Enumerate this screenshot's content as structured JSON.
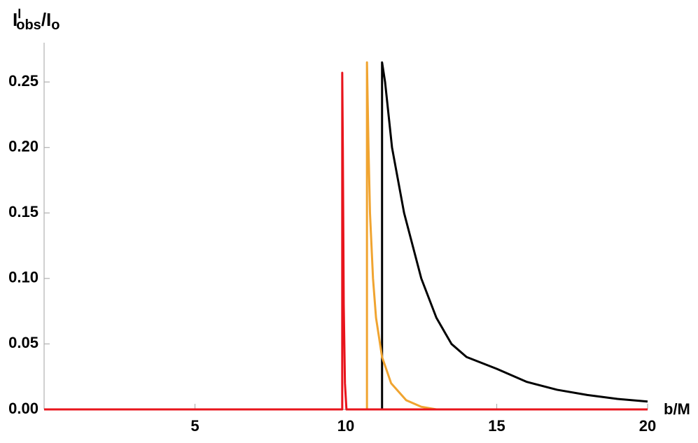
{
  "chart_data": {
    "type": "line",
    "ylabel": {
      "base": "I",
      "sup": "l",
      "sub": "obs",
      "rest": "/I",
      "rest_sub": "o"
    },
    "xlabel": "b/M",
    "xlim": [
      0,
      20
    ],
    "ylim": [
      0,
      0.28
    ],
    "xticks": [
      5,
      10,
      15,
      20
    ],
    "yticks": [
      {
        "value": 0,
        "label": "0.00"
      },
      {
        "value": 0.05,
        "label": "0.05"
      },
      {
        "value": 0.1,
        "label": "0.10"
      },
      {
        "value": 0.15,
        "label": "0.15"
      },
      {
        "value": 0.2,
        "label": "0.20"
      },
      {
        "value": 0.25,
        "label": "0.25"
      }
    ],
    "series": [
      {
        "color": "#000000",
        "x": [
          11.2,
          11.2,
          11.3,
          11.53,
          11.93,
          12.5,
          13,
          13.5,
          14,
          15,
          16,
          17,
          18,
          19,
          20
        ],
        "values": [
          0,
          0.265,
          0.25,
          0.2,
          0.15,
          0.1,
          0.07,
          0.05,
          0.04,
          0.031,
          0.021,
          0.015,
          0.011,
          0.008,
          0.006
        ]
      },
      {
        "color": "#f0a430",
        "x": [
          10.7,
          10.7,
          10.75,
          10.8,
          10.9,
          11,
          11.2,
          11.5,
          12,
          12.5,
          13,
          20
        ],
        "values": [
          0,
          0.265,
          0.2,
          0.15,
          0.1,
          0.07,
          0.04,
          0.02,
          0.007,
          0.002,
          0,
          0
        ]
      },
      {
        "color": "#e8141c",
        "x": [
          0,
          9.88,
          9.88,
          9.9,
          9.93,
          9.97,
          10.02,
          20
        ],
        "values": [
          0,
          0,
          0.257,
          0.2,
          0.08,
          0.02,
          0,
          0
        ]
      }
    ]
  }
}
